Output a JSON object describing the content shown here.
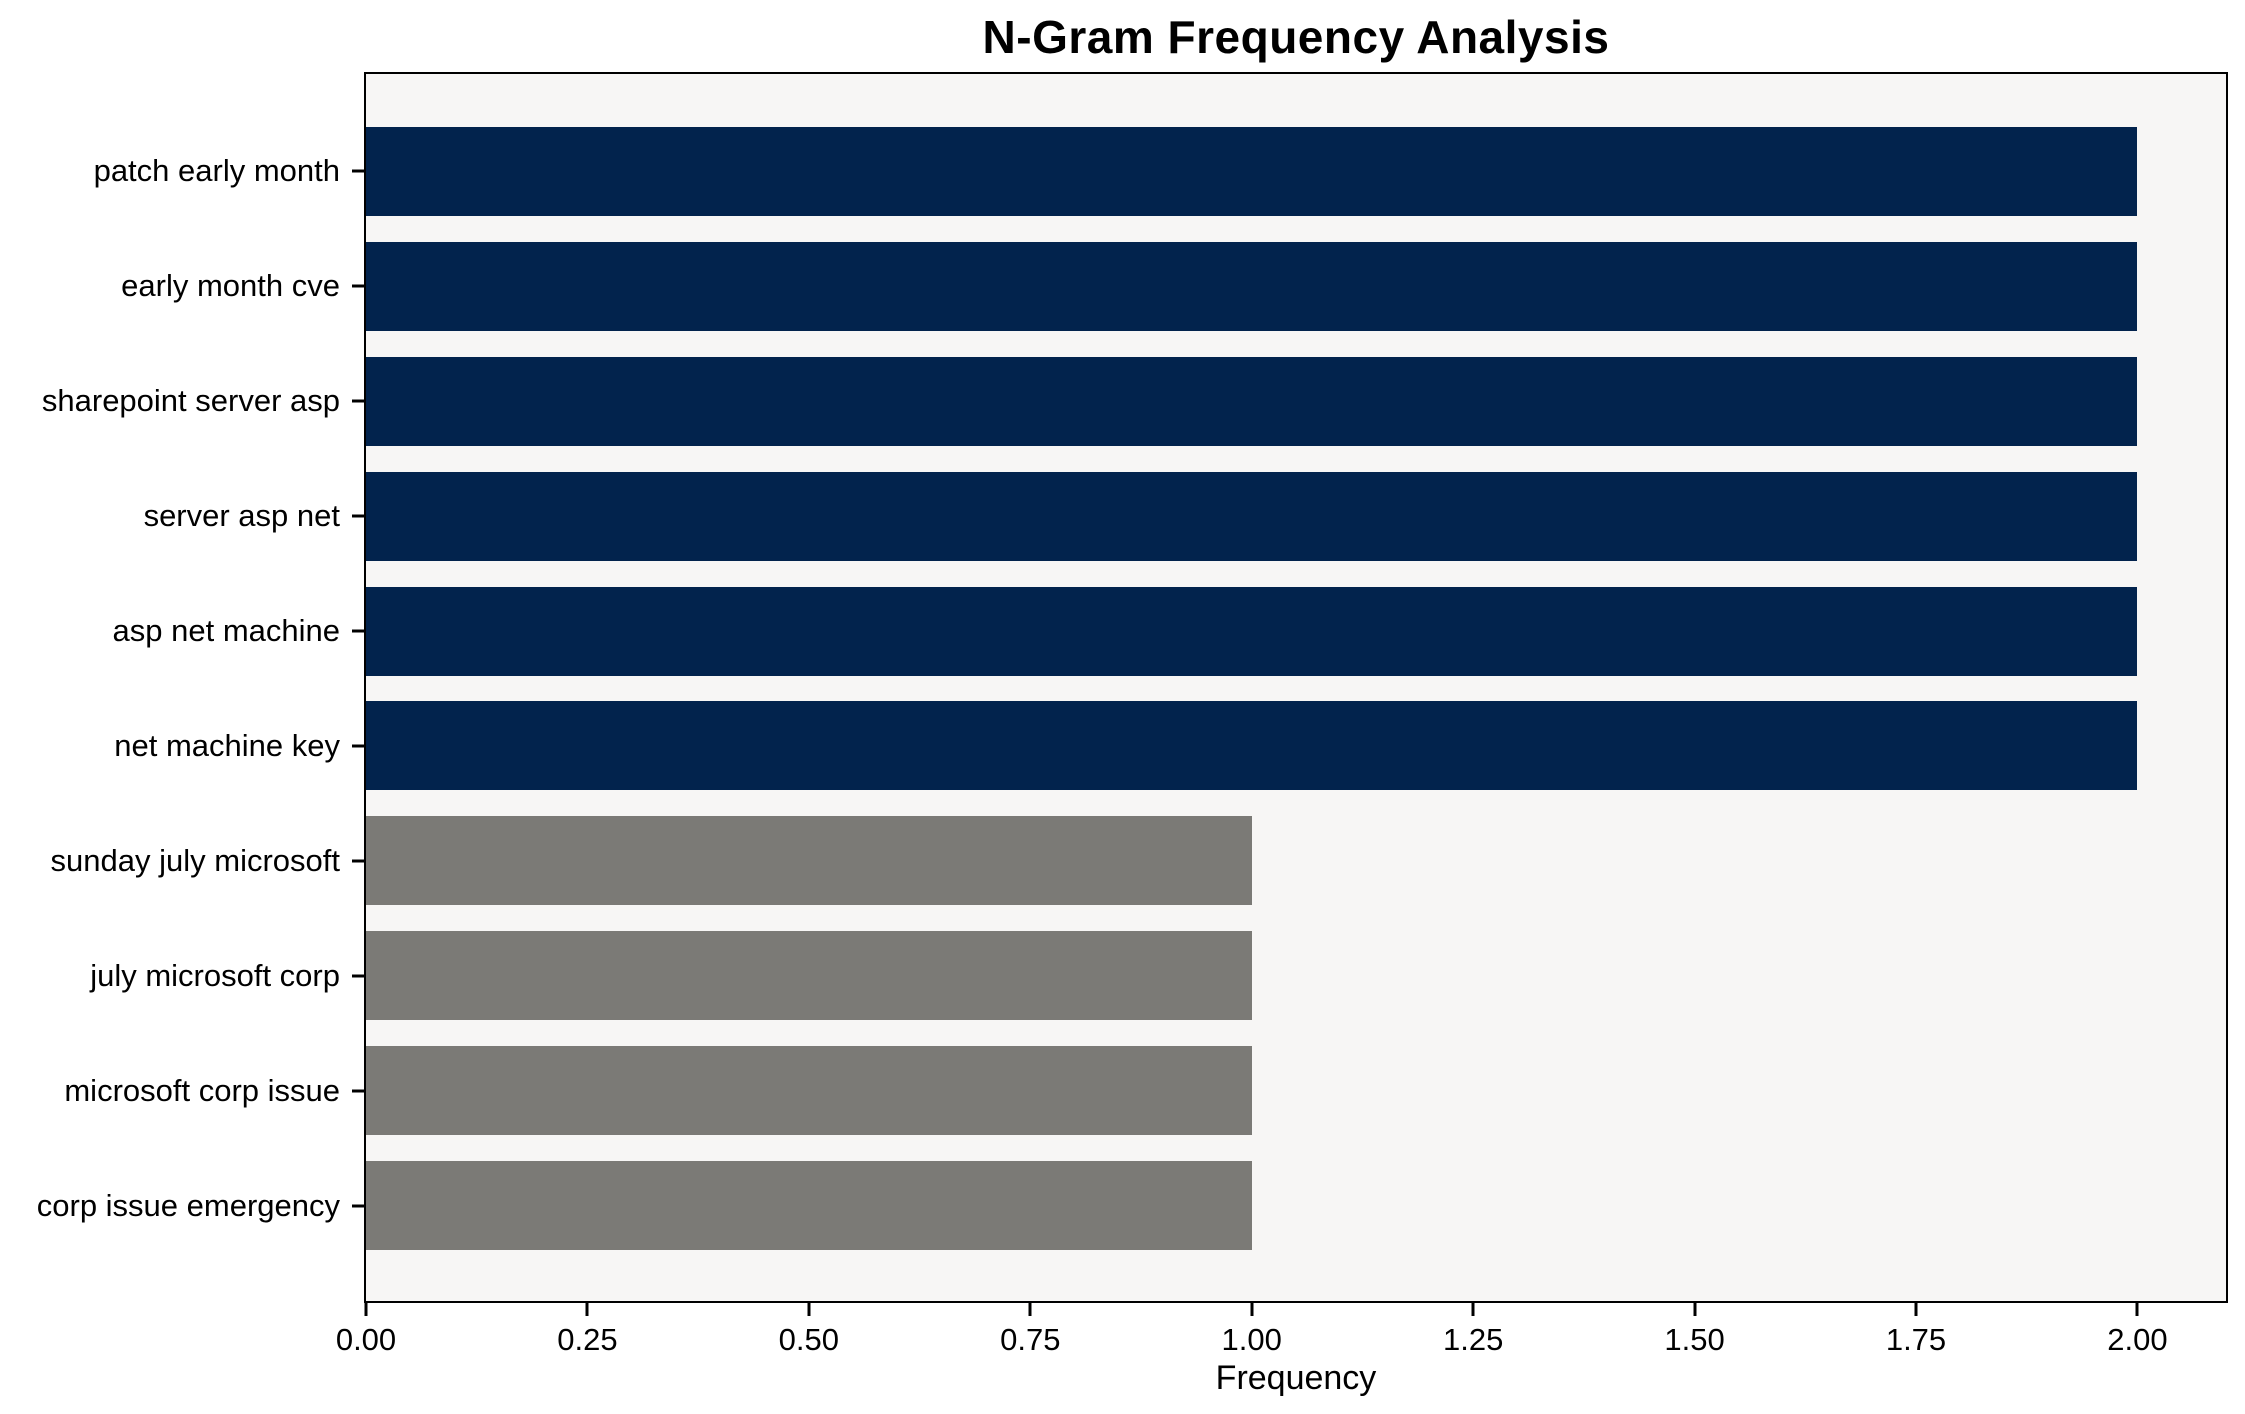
{
  "chart": {
    "title": "N-Gram Frequency Analysis",
    "xlabel": "Frequency"
  },
  "chart_data": {
    "type": "bar",
    "orientation": "horizontal",
    "title": "N-Gram Frequency Analysis",
    "xlabel": "Frequency",
    "ylabel": "",
    "categories": [
      "patch early month",
      "early month cve",
      "sharepoint server asp",
      "server asp net",
      "asp net machine",
      "net machine key",
      "sunday july microsoft",
      "july microsoft corp",
      "microsoft corp issue",
      "corp issue emergency"
    ],
    "values": [
      2,
      2,
      2,
      2,
      2,
      2,
      1,
      1,
      1,
      1
    ],
    "bar_colors": [
      "#02234D",
      "#02234D",
      "#02234D",
      "#02234D",
      "#02234D",
      "#02234D",
      "#7B7A76",
      "#7B7A76",
      "#7B7A76",
      "#7B7A76"
    ],
    "xlim": [
      0,
      2.1
    ],
    "xticks": {
      "values": [
        0,
        0.25,
        0.5,
        0.75,
        1.0,
        1.25,
        1.5,
        1.75,
        2.0
      ],
      "labels": [
        "0.00",
        "0.25",
        "0.50",
        "0.75",
        "1.00",
        "1.25",
        "1.50",
        "1.75",
        "2.00"
      ]
    },
    "grid": false,
    "legend": false,
    "colors": {
      "highlight_bar": "#02234D",
      "regular_bar": "#7B7A76",
      "plot_background": "#F7F6F5",
      "figure_background": "#FFFFFF",
      "axis_line": "#000000",
      "text": "#000000"
    }
  }
}
